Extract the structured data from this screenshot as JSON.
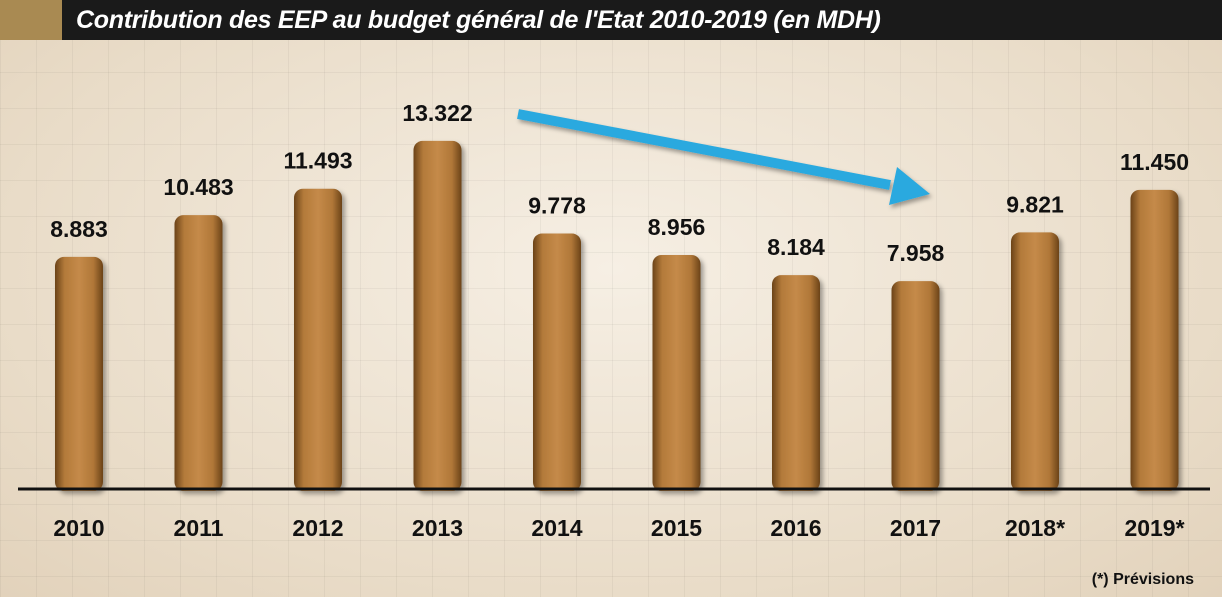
{
  "chart_data": {
    "type": "bar",
    "title": "Contribution des EEP au budget général de l'Etat 2010-2019 (en MDH)",
    "categories": [
      "2010",
      "2011",
      "2012",
      "2013",
      "2014",
      "2015",
      "2016",
      "2017",
      "2018*",
      "2019*"
    ],
    "values": [
      8883,
      10483,
      11493,
      13322,
      9778,
      8956,
      8184,
      7958,
      9821,
      11450
    ],
    "value_labels": [
      "8.883",
      "10.483",
      "11.493",
      "13.322",
      "9.778",
      "8.956",
      "8.184",
      "7.958",
      "9.821",
      "11.450"
    ],
    "ylim": [
      0,
      15500
    ],
    "grid": true,
    "bar_color": "#b57f3e",
    "arrow_color": "#29a9df",
    "annotation": "trend arrow from 2014 toward 2017 (decline)",
    "footnote": "(*) Prévisions"
  },
  "colors": {
    "title_bg": "#1a1a1a",
    "title_accent": "#a98a52",
    "title_text": "#ffffff"
  }
}
